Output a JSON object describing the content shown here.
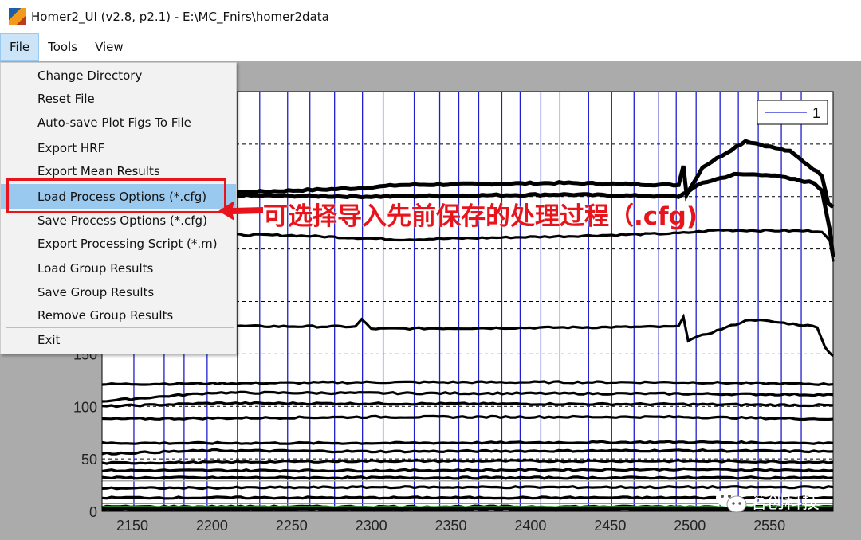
{
  "window": {
    "title": "Homer2_UI  (v2.8, p2.1) - E:\\MC_Fnirs\\homer2data"
  },
  "menubar": {
    "items": [
      {
        "label": "File",
        "active": true
      },
      {
        "label": "Tools"
      },
      {
        "label": "View"
      }
    ]
  },
  "file_menu": {
    "items": [
      {
        "label": "Change Directory"
      },
      {
        "label": "Reset File"
      },
      {
        "label": "Auto-save Plot Figs To File"
      },
      {
        "label": "Export HRF"
      },
      {
        "label": "Export Mean Results"
      },
      {
        "label": "Load Process Options (*.cfg)",
        "highlighted": true
      },
      {
        "label": "Save Process Options (*.cfg)"
      },
      {
        "label": "Export Processing Script (*.m)"
      },
      {
        "label": "Load Group Results"
      },
      {
        "label": "Save Group Results"
      },
      {
        "label": "Remove Group Results"
      },
      {
        "label": "Exit"
      }
    ]
  },
  "annotation": {
    "text": "可选择导入先前保存的处理过程（.cfg)",
    "color": "#e8141c"
  },
  "watermark": {
    "text": "茗创科技"
  },
  "colors": {
    "trace": "#000000",
    "stim_line": "#1f1fcf",
    "highlight": "#99c9ef",
    "figure_bg": "#ababab"
  },
  "chart_data": {
    "type": "line",
    "xlim": [
      2131,
      2590
    ],
    "ylim": [
      0,
      400
    ],
    "xticks": [
      2150,
      2200,
      2250,
      2300,
      2350,
      2400,
      2450,
      2500,
      2550
    ],
    "yticks_visible": [
      0,
      50,
      100,
      150
    ],
    "grid_y": [
      50,
      100,
      150,
      200,
      250,
      300,
      350,
      400
    ],
    "grid": "horizontal dashed",
    "legend": {
      "entries": [
        "1"
      ],
      "placement": "top-right"
    },
    "stim_marks_x": [
      2151,
      2170,
      2182.5,
      2197,
      2216,
      2230,
      2247.5,
      2261.5,
      2277,
      2294.5,
      2307.5,
      2327,
      2343,
      2355,
      2367.5,
      2382,
      2393.5,
      2406.5,
      2418.5,
      2436.5,
      2451,
      2465,
      2480.5,
      2491.5,
      2504,
      2519,
      2530.5,
      2543,
      2557.5,
      2570
    ],
    "series": [
      {
        "points": [
          [
            2131,
            306
          ],
          [
            2218,
            304
          ],
          [
            2293,
            308
          ],
          [
            2318,
            311
          ],
          [
            2418,
            313
          ],
          [
            2493,
            311
          ],
          [
            2496,
            330
          ],
          [
            2498,
            302
          ],
          [
            2508,
            328
          ],
          [
            2535,
            353
          ],
          [
            2563,
            343
          ],
          [
            2583,
            320
          ],
          [
            2587,
            294
          ],
          [
            2590,
            290
          ]
        ]
      },
      {
        "points": [
          [
            2131,
            302
          ],
          [
            2300,
            300
          ],
          [
            2418,
            302
          ],
          [
            2493,
            300
          ],
          [
            2508,
            313
          ],
          [
            2528,
            321
          ],
          [
            2548,
            321
          ],
          [
            2578,
            313
          ],
          [
            2583,
            306
          ],
          [
            2588,
            268
          ],
          [
            2590,
            242
          ]
        ]
      },
      {
        "points": [
          [
            2131,
            265
          ],
          [
            2250,
            263
          ],
          [
            2318,
            259
          ],
          [
            2418,
            262
          ],
          [
            2493,
            265
          ],
          [
            2518,
            268
          ],
          [
            2583,
            267
          ],
          [
            2588,
            257
          ],
          [
            2590,
            238
          ]
        ]
      },
      {
        "points": [
          [
            2131,
            177
          ],
          [
            2290,
            176
          ],
          [
            2294,
            183
          ],
          [
            2300,
            174
          ],
          [
            2493,
            176
          ],
          [
            2496,
            186
          ],
          [
            2499,
            163
          ],
          [
            2538,
            183
          ],
          [
            2580,
            176
          ],
          [
            2585,
            156
          ],
          [
            2590,
            148
          ]
        ]
      },
      {
        "points": [
          [
            2131,
            121
          ],
          [
            2300,
            123
          ],
          [
            2493,
            123
          ],
          [
            2590,
            121
          ]
        ]
      },
      {
        "points": [
          [
            2131,
            105
          ],
          [
            2200,
            113
          ],
          [
            2493,
            112
          ],
          [
            2590,
            111
          ]
        ]
      },
      {
        "points": [
          [
            2131,
            100
          ],
          [
            2200,
            103
          ],
          [
            2493,
            102
          ],
          [
            2590,
            101
          ]
        ]
      },
      {
        "points": [
          [
            2131,
            88
          ],
          [
            2300,
            90
          ],
          [
            2493,
            90
          ],
          [
            2590,
            88
          ]
        ]
      },
      {
        "points": [
          [
            2131,
            65
          ],
          [
            2300,
            65
          ],
          [
            2493,
            66
          ],
          [
            2590,
            65
          ]
        ]
      },
      {
        "points": [
          [
            2131,
            55
          ],
          [
            2200,
            58
          ],
          [
            2300,
            57
          ],
          [
            2493,
            58
          ],
          [
            2590,
            57
          ]
        ]
      },
      {
        "points": [
          [
            2131,
            46
          ],
          [
            2300,
            48
          ],
          [
            2493,
            48
          ],
          [
            2590,
            47
          ]
        ]
      },
      {
        "points": [
          [
            2131,
            39
          ],
          [
            2300,
            39
          ],
          [
            2493,
            40
          ],
          [
            2590,
            39
          ]
        ]
      },
      {
        "points": [
          [
            2131,
            32
          ],
          [
            2300,
            32
          ],
          [
            2493,
            32
          ],
          [
            2590,
            32
          ]
        ]
      },
      {
        "points": [
          [
            2131,
            22
          ],
          [
            2300,
            23
          ],
          [
            2493,
            23
          ],
          [
            2590,
            23
          ]
        ]
      },
      {
        "points": [
          [
            2131,
            13
          ],
          [
            2590,
            13
          ]
        ]
      },
      {
        "points": [
          [
            2131,
            3
          ],
          [
            2590,
            3
          ]
        ]
      }
    ]
  }
}
